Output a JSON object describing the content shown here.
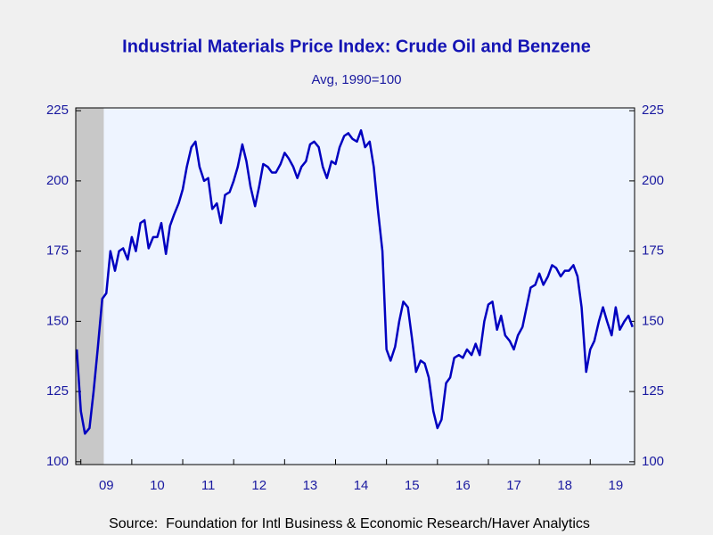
{
  "chart_data": {
    "type": "line",
    "title": "Industrial Materials Price Index: Crude Oil and Benzene",
    "subtitle": "Avg, 1990=100",
    "source": "Source:  Foundation for Intl Business & Economic Research/Haver Analytics",
    "x": [
      2008.92,
      2009.0,
      2009.08,
      2009.17,
      2009.25,
      2009.33,
      2009.42,
      2009.5,
      2009.58,
      2009.67,
      2009.75,
      2009.83,
      2009.92,
      2010.0,
      2010.08,
      2010.17,
      2010.25,
      2010.33,
      2010.42,
      2010.5,
      2010.58,
      2010.67,
      2010.75,
      2010.83,
      2010.92,
      2011.0,
      2011.08,
      2011.17,
      2011.25,
      2011.33,
      2011.42,
      2011.5,
      2011.58,
      2011.67,
      2011.75,
      2011.83,
      2011.92,
      2012.0,
      2012.08,
      2012.17,
      2012.25,
      2012.33,
      2012.42,
      2012.5,
      2012.58,
      2012.67,
      2012.75,
      2012.83,
      2012.92,
      2013.0,
      2013.08,
      2013.17,
      2013.25,
      2013.33,
      2013.42,
      2013.5,
      2013.58,
      2013.67,
      2013.75,
      2013.83,
      2013.92,
      2014.0,
      2014.08,
      2014.17,
      2014.25,
      2014.33,
      2014.42,
      2014.5,
      2014.58,
      2014.67,
      2014.75,
      2014.83,
      2014.92,
      2015.0,
      2015.08,
      2015.17,
      2015.25,
      2015.33,
      2015.42,
      2015.5,
      2015.58,
      2015.67,
      2015.75,
      2015.83,
      2015.92,
      2016.0,
      2016.08,
      2016.17,
      2016.25,
      2016.33,
      2016.42,
      2016.5,
      2016.58,
      2016.67,
      2016.75,
      2016.83,
      2016.92,
      2017.0,
      2017.08,
      2017.17,
      2017.25,
      2017.33,
      2017.42,
      2017.5,
      2017.58,
      2017.67,
      2017.75,
      2017.83,
      2017.92,
      2018.0,
      2018.08,
      2018.17,
      2018.25,
      2018.33,
      2018.42,
      2018.5,
      2018.58,
      2018.67,
      2018.75,
      2018.83,
      2018.92,
      2019.0,
      2019.08,
      2019.17,
      2019.25,
      2019.33,
      2019.42,
      2019.5,
      2019.58,
      2019.67,
      2019.75,
      2019.83
    ],
    "series": [
      {
        "color": "#0000c0",
        "values": [
          140,
          118,
          110,
          112,
          125,
          140,
          158,
          160,
          175,
          168,
          175,
          176,
          172,
          180,
          175,
          185,
          186,
          176,
          180,
          180,
          185,
          174,
          184,
          188,
          192,
          197,
          205,
          212,
          214,
          205,
          200,
          201,
          190,
          192,
          185,
          195,
          196,
          200,
          205,
          213,
          207,
          198,
          191,
          198,
          206,
          205,
          203,
          203,
          206,
          210,
          208,
          205,
          201,
          205,
          207,
          213,
          214,
          212,
          205,
          201,
          207,
          206,
          212,
          216,
          217,
          215,
          214,
          218,
          212,
          214,
          205,
          190,
          175,
          140,
          136,
          141,
          150,
          157,
          155,
          144,
          132,
          136,
          135,
          130,
          118,
          112,
          115,
          128,
          130,
          137,
          138,
          137,
          140,
          138,
          142,
          138,
          150,
          156,
          157,
          147,
          152,
          145,
          143,
          140,
          145,
          148,
          155,
          162,
          163,
          167,
          163,
          166,
          170,
          169,
          166,
          168,
          168,
          170,
          166,
          155,
          132,
          140,
          143,
          150,
          155,
          150,
          145,
          155,
          147,
          150,
          152,
          148
        ]
      }
    ],
    "xlim": [
      2008.9,
      2019.87
    ],
    "xticks": [
      {
        "value": 2009.5,
        "label": "09"
      },
      {
        "value": 2010.5,
        "label": "10"
      },
      {
        "value": 2011.5,
        "label": "11"
      },
      {
        "value": 2012.5,
        "label": "12"
      },
      {
        "value": 2013.5,
        "label": "13"
      },
      {
        "value": 2014.5,
        "label": "14"
      },
      {
        "value": 2015.5,
        "label": "15"
      },
      {
        "value": 2016.5,
        "label": "16"
      },
      {
        "value": 2017.5,
        "label": "17"
      },
      {
        "value": 2018.5,
        "label": "18"
      },
      {
        "value": 2019.5,
        "label": "19"
      }
    ],
    "ylim": [
      99,
      226
    ],
    "yticks": [
      100,
      125,
      150,
      175,
      200,
      225
    ],
    "y2lim": [
      99,
      226
    ],
    "y2ticks": [
      100,
      125,
      150,
      175,
      200,
      225
    ],
    "shaded_xrange": [
      2008.9,
      2009.45
    ],
    "shade_color": "#c8c8c8",
    "plot_background": "#eef4ff"
  }
}
